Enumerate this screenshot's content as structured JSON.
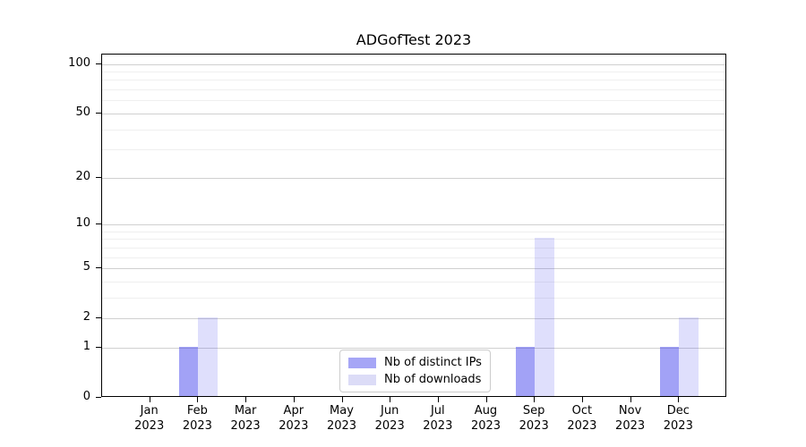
{
  "title": "ADGofTest 2023",
  "chart_data": {
    "type": "bar",
    "title": "ADGofTest 2023",
    "categories": [
      "Jan 2023",
      "Feb 2023",
      "Mar 2023",
      "Apr 2023",
      "May 2023",
      "Jun 2023",
      "Jul 2023",
      "Aug 2023",
      "Sep 2023",
      "Oct 2023",
      "Nov 2023",
      "Dec 2023"
    ],
    "series": [
      {
        "name": "Nb of distinct IPs",
        "swatch_color": "#a6a6f6",
        "fill_color": "rgba(77,77,238,0.52)",
        "values": [
          0,
          1,
          0,
          0,
          0,
          0,
          0,
          0,
          1,
          0,
          0,
          1
        ]
      },
      {
        "name": "Nb of downloads",
        "swatch_color": "#dcdcf7",
        "fill_color": "rgba(77,77,238,0.18)",
        "values": [
          0,
          2,
          0,
          0,
          0,
          0,
          0,
          0,
          8,
          0,
          0,
          2
        ]
      }
    ],
    "scale": "log1p",
    "y_major_ticks": [
      0,
      1,
      2,
      5,
      10,
      20,
      50,
      100
    ],
    "y_minor_gridlines": [
      3,
      4,
      6,
      7,
      8,
      9,
      30,
      40,
      60,
      70,
      80,
      90
    ],
    "ylim": [
      0,
      114
    ],
    "xlim": [
      -1,
      12
    ],
    "xlabel": "",
    "ylabel": "",
    "grid": "horizontal",
    "legend_position": "lower center"
  }
}
